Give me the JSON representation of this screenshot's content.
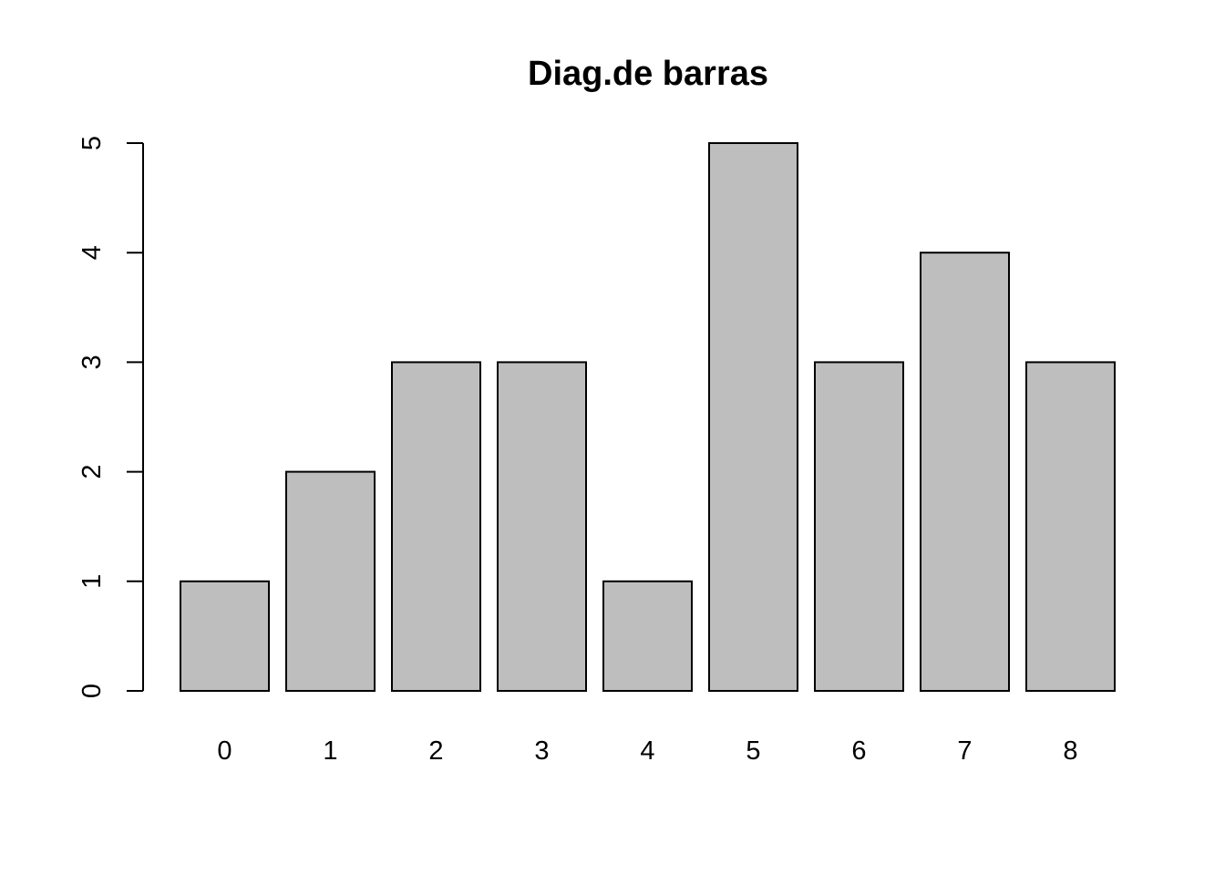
{
  "chart_data": {
    "type": "bar",
    "title": "Diag.de barras",
    "xlabel": "",
    "ylabel": "",
    "categories": [
      "0",
      "1",
      "2",
      "3",
      "4",
      "5",
      "6",
      "7",
      "8"
    ],
    "values": [
      1,
      2,
      3,
      3,
      1,
      5,
      3,
      4,
      3
    ],
    "ylim": [
      0,
      5
    ],
    "yticks": [
      0,
      1,
      2,
      3,
      4,
      5
    ],
    "grid": false,
    "legend": "none",
    "colors": {
      "bar_fill": "#bebebe",
      "bar_stroke": "#000000",
      "axis": "#000000",
      "background": "#ffffff"
    }
  }
}
